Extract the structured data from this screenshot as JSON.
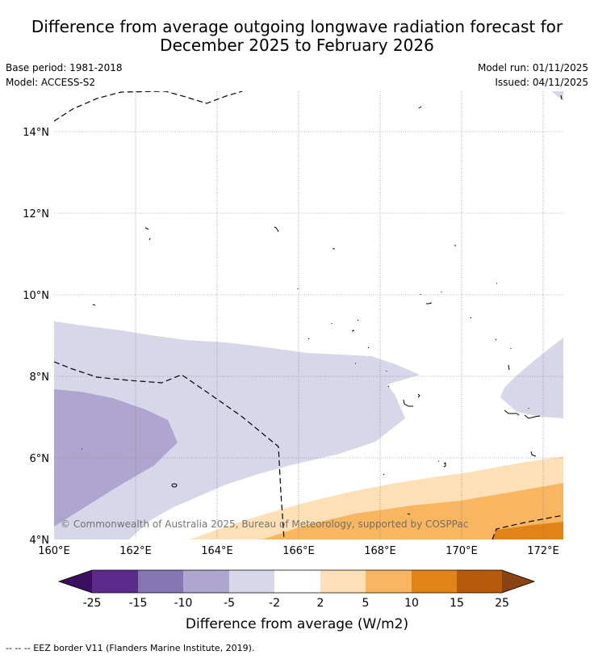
{
  "title_line1": "Difference from average outgoing longwave radiation forecast for",
  "title_line2": "December 2025 to February 2026",
  "base_period": "Base period: 1981-2018",
  "model": "Model: ACCESS-S2",
  "model_run": "Model run: 01/11/2025",
  "issued": "Issued: 04/11/2025",
  "map": {
    "lat_labels": [
      "14°N",
      "12°N",
      "10°N",
      "8°N",
      "6°N",
      "4°N"
    ],
    "lon_labels": [
      "160°E",
      "162°E",
      "164°E",
      "166°E",
      "168°E",
      "170°E",
      "172°E"
    ],
    "watermark": "© Commonwealth of Australia 2025, Bureau of Meteorology, supported by COSPPac"
  },
  "colorbar": {
    "ticks": [
      "-25",
      "-15",
      "-10",
      "-5",
      "-2",
      "2",
      "5",
      "10",
      "15",
      "25"
    ],
    "colors": [
      "#5b2a8a",
      "#8575b0",
      "#afa6d0",
      "#d7d7ea",
      "#ffffff",
      "#fde0b5",
      "#f9b661",
      "#e08418",
      "#b65a0c"
    ],
    "under_color": "#3a0f5f",
    "over_color": "#8a4210",
    "label": "Difference from average (W/m2)"
  },
  "footer_legend": "--  --  -- EEZ border V11 (Flanders Marine Institute, 2019)."
}
